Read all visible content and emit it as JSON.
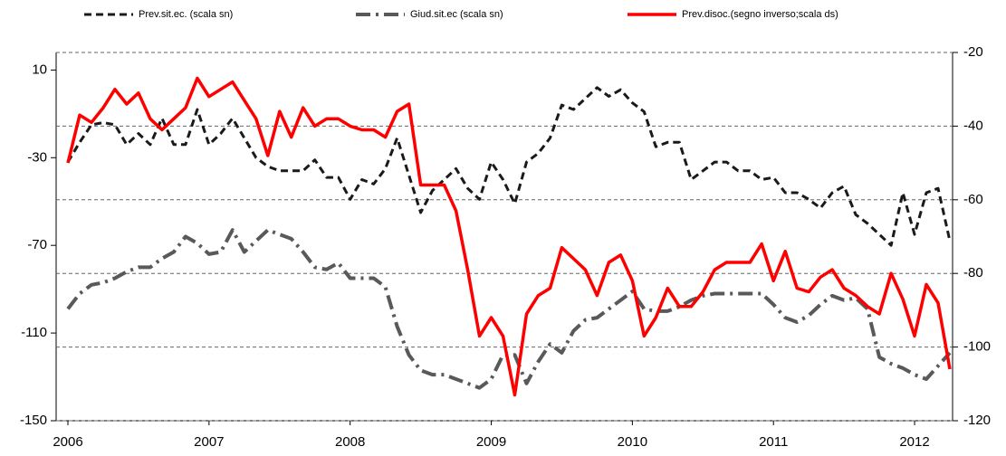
{
  "chart_data": {
    "type": "line",
    "categories": [
      "2006",
      null,
      null,
      null,
      null,
      null,
      null,
      null,
      null,
      null,
      null,
      null,
      "2007",
      null,
      null,
      null,
      null,
      null,
      null,
      null,
      null,
      null,
      null,
      null,
      "2008",
      null,
      null,
      null,
      null,
      null,
      null,
      null,
      null,
      null,
      null,
      null,
      "2009",
      null,
      null,
      null,
      null,
      null,
      null,
      null,
      null,
      null,
      null,
      null,
      "2010",
      null,
      null,
      null,
      null,
      null,
      null,
      null,
      null,
      null,
      null,
      null,
      "2011",
      null,
      null,
      null,
      null,
      null,
      null,
      null,
      null,
      null,
      null,
      null,
      "2012",
      null,
      null,
      null
    ],
    "series": [
      {
        "name": "Prev.sit.ec. (scala sn)",
        "color": "#1a1a1a",
        "dash": "dashed",
        "values": [
          -32,
          -23,
          -15,
          -14,
          -15,
          -24,
          -19,
          -24,
          -12,
          -24,
          -24,
          -8,
          -24,
          -19,
          -12,
          -21,
          -30,
          -34,
          -36,
          -36,
          -36,
          -31,
          -39,
          -39,
          -49,
          -40,
          -42,
          -35,
          -21,
          -38,
          -55,
          -45,
          -40,
          -35,
          -44,
          -49,
          -32,
          -40,
          -51,
          -32,
          -28,
          -21,
          -6,
          -8,
          -3,
          2,
          -2,
          1,
          -5,
          -9,
          -25,
          -23,
          -23,
          -40,
          -36,
          -32,
          -32,
          -36,
          -36,
          -40,
          -39,
          -46,
          -46,
          -49,
          -53,
          -46,
          -43,
          -56,
          -60,
          -65,
          -70,
          -46,
          -65,
          -46,
          -44,
          -68
        ]
      },
      {
        "name": "Giud.sit.ec (scala sn)",
        "color": "#595959",
        "dash": "dashdot",
        "values": [
          -99,
          -92,
          -88,
          -87,
          -85,
          -82,
          -80,
          -80,
          -76,
          -73,
          -66,
          -69,
          -74,
          -73,
          -63,
          -73,
          -68,
          -63,
          -65,
          -67,
          -73,
          -80,
          -81,
          -78,
          -85,
          -85,
          -85,
          -89,
          -107,
          -120,
          -127,
          -129,
          -129,
          -131,
          -133,
          -135,
          -131,
          -120,
          -120,
          -133,
          -123,
          -115,
          -119,
          -109,
          -104,
          -103,
          -99,
          -95,
          -91,
          -99,
          -100,
          -100,
          -98,
          -95,
          -93,
          -92,
          -92,
          -92,
          -92,
          -92,
          -97,
          -103,
          -105,
          -102,
          -97,
          -93,
          -95,
          -94,
          -99,
          -121,
          -124,
          -126,
          -129,
          -131,
          -125,
          -119
        ]
      },
      {
        "name": "Prev.disoc.(segno inverso;scala ds)",
        "color": "#ff0000",
        "dash": "solid",
        "axis": "y2",
        "values": [
          -50,
          -37,
          -39,
          -35,
          -30,
          -34,
          -31,
          -38,
          -41,
          -38,
          -35,
          -27,
          -32,
          -30,
          -28,
          -33,
          -38,
          -48,
          -36,
          -43,
          -35,
          -40,
          -38,
          -38,
          -40,
          -41,
          -41,
          -43,
          -36,
          -34,
          -56,
          -56,
          -56,
          -63,
          -79,
          -97,
          -92,
          -97,
          -113,
          -91,
          -86,
          -84,
          -73,
          -76,
          -79,
          -86,
          -77,
          -75,
          -82,
          -97,
          -92,
          -84,
          -89,
          -89,
          -85,
          -79,
          -77,
          -77,
          -77,
          -72,
          -82,
          -74,
          -84,
          -85,
          -81,
          -79,
          -84,
          -86,
          -89,
          -91,
          -80,
          -87,
          -97,
          -83,
          -88,
          -106
        ]
      }
    ],
    "ylim": [
      -150,
      18
    ],
    "yticks": [
      -150,
      -110,
      -70,
      -30,
      10
    ],
    "y2lim": [
      -120,
      -20
    ],
    "y2ticks": [
      -120,
      -100,
      -80,
      -60,
      -40,
      -20
    ],
    "grid": true
  }
}
